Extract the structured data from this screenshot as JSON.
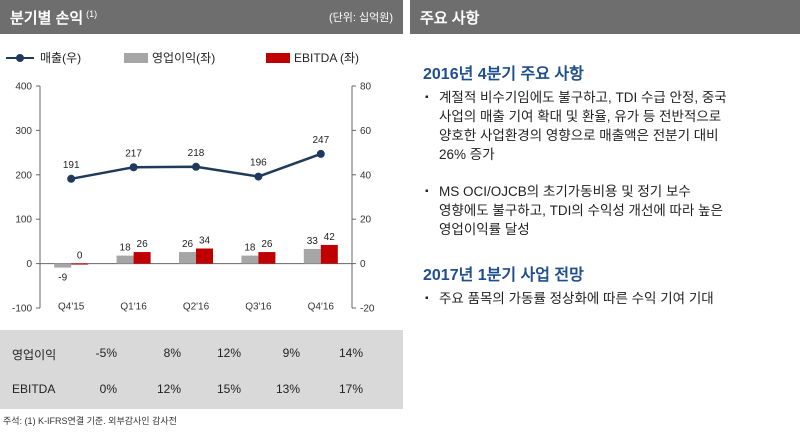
{
  "left_header": {
    "title": "분기별 손익",
    "note": "(1)",
    "unit": "(단위: 십억원)"
  },
  "right_header": {
    "title": "주요 사항"
  },
  "legend": {
    "line": "매출(우)",
    "grey": "영업이익(좌)",
    "red": "EBITDA (좌)"
  },
  "colors": {
    "line": "#1f3a5a",
    "grey": "#a6a6a6",
    "red": "#c00000"
  },
  "chart_data": {
    "type": "bar",
    "categories": [
      "Q4'15",
      "Q1'16",
      "Q2'16",
      "Q3'16",
      "Q4'16"
    ],
    "y_left": {
      "min": -100,
      "max": 400,
      "ticks": [
        -100,
        0,
        100,
        200,
        300,
        400
      ]
    },
    "y_right": {
      "min": -20,
      "max": 80,
      "ticks": [
        -20,
        0,
        20,
        40,
        60,
        80
      ]
    },
    "series": [
      {
        "name": "매출(우)",
        "type": "line",
        "axis": "right",
        "values": [
          191,
          217,
          218,
          196,
          247
        ]
      },
      {
        "name": "영업이익(좌)",
        "type": "bar",
        "axis": "left",
        "values": [
          -9,
          18,
          26,
          18,
          33
        ]
      },
      {
        "name": "EBITDA (좌)",
        "type": "bar",
        "axis": "left",
        "values": [
          0,
          26,
          34,
          26,
          42
        ]
      }
    ],
    "line_plot_scale": 0.2
  },
  "margin_table": {
    "rows": [
      {
        "label": "영업이익",
        "values": [
          "-5%",
          "8%",
          "12%",
          "9%",
          "14%"
        ]
      },
      {
        "label": "EBITDA",
        "values": [
          "0%",
          "12%",
          "15%",
          "13%",
          "17%"
        ]
      }
    ]
  },
  "footnote": "주석: (1) K-IFRS연결 기준. 외부감사인 감사전",
  "sections": [
    {
      "title": "2016년 4분기 주요 사항",
      "bullets": [
        [
          "계절적 비수기임에도 불구하고, TDI 수급 안정, 중국",
          "사업의 매출 기여 확대 및 환율, 유가 등 전반적으로",
          "양호한 사업환경의 영향으로 매출액은 전분기 대비",
          "26% 증가"
        ],
        [
          "MS OCI/OJCB의 초기가동비용 및 정기 보수",
          "영향에도 불구하고, TDI의 수익성 개선에 따라 높은",
          "영업이익률 달성"
        ]
      ]
    },
    {
      "title": "2017년 1분기 사업 전망",
      "bullets": [
        [
          "주요 품목의 가동률 정상화에 따른 수익 기여 기대"
        ]
      ]
    }
  ]
}
